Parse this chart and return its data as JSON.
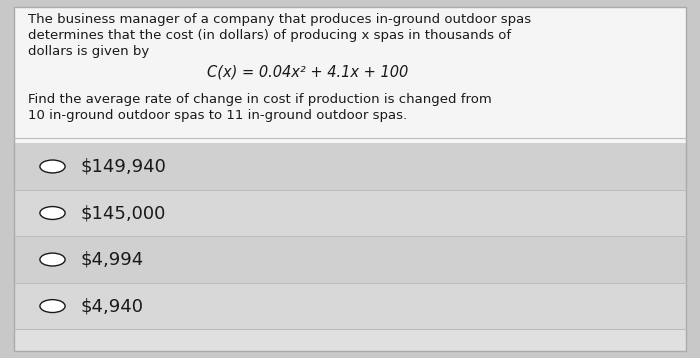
{
  "bg_color": "#c8c8c8",
  "card_color": "#f0f0f0",
  "upper_bg": "#f5f5f5",
  "lower_bg": "#d8d8d8",
  "text_color": "#1a1a1a",
  "paragraph1_line1": "The business manager of a company that produces in-ground outdoor spas",
  "paragraph1_line2": "determines that the cost (in dollars) of producing x spas in thousands of",
  "paragraph1_line3": "dollars is given by",
  "formula": "C(x) = 0.04x² + 4.1x + 100",
  "paragraph2_line1": "Find the average rate of change in cost if production is changed from",
  "paragraph2_line2": "10 in-ground outdoor spas to 11 in-ground outdoor spas.",
  "choices": [
    "$149,940",
    "$145,000",
    "$4,994",
    "$4,940"
  ],
  "body_fontsize": 9.5,
  "formula_fontsize": 10.5,
  "choice_fontsize": 13
}
